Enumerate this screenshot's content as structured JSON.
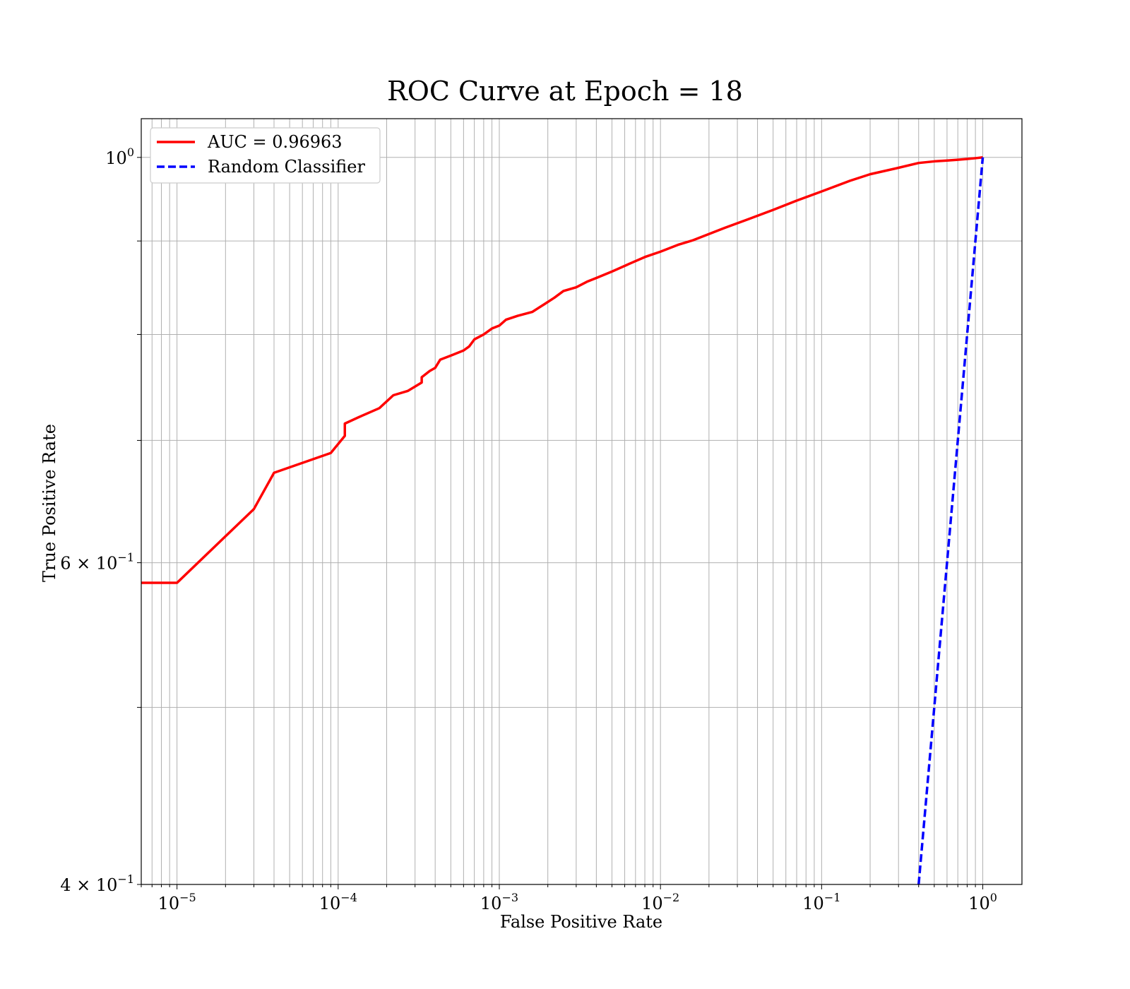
{
  "chart_data": {
    "type": "line",
    "title": "ROC Curve at Epoch = 18",
    "xlabel": "False Positive Rate",
    "ylabel": "True Positive Rate",
    "xscale": "log",
    "yscale": "log",
    "xlim": [
      6e-06,
      1.75
    ],
    "ylim": [
      0.4,
      1.05
    ],
    "grid": true,
    "legend_position": "upper left",
    "x_tick_labels": [
      {
        "value": 1e-05,
        "base": "10",
        "exp": "−5"
      },
      {
        "value": 0.0001,
        "base": "10",
        "exp": "−4"
      },
      {
        "value": 0.001,
        "base": "10",
        "exp": "−3"
      },
      {
        "value": 0.01,
        "base": "10",
        "exp": "−2"
      },
      {
        "value": 0.1,
        "base": "10",
        "exp": "−1"
      },
      {
        "value": 1,
        "base": "10",
        "exp": "0"
      }
    ],
    "y_tick_labels": [
      {
        "value": 1.0,
        "base": "10",
        "exp": "0"
      },
      {
        "value": 0.6,
        "base": "6 × 10",
        "exp": "−1"
      },
      {
        "value": 0.4,
        "base": "4 × 10",
        "exp": "−1"
      }
    ],
    "y_minor_ticks": [
      0.5,
      0.7,
      0.8,
      0.9
    ],
    "series": [
      {
        "name": "AUC = 0.96963",
        "color": "#ff0000",
        "style": "solid",
        "x": [
          6e-06,
          1e-05,
          3e-05,
          4e-05,
          9e-05,
          0.00011,
          0.00011,
          0.00014,
          0.00018,
          0.00022,
          0.00027,
          0.00033,
          0.00033,
          0.00037,
          0.0004,
          0.00043,
          0.0005,
          0.0006,
          0.00065,
          0.0007,
          0.0008,
          0.0009,
          0.001,
          0.0011,
          0.0013,
          0.0016,
          0.0019,
          0.0022,
          0.0025,
          0.003,
          0.0035,
          0.004,
          0.005,
          0.0065,
          0.008,
          0.01,
          0.013,
          0.016,
          0.02,
          0.025,
          0.035,
          0.05,
          0.07,
          0.1,
          0.15,
          0.2,
          0.3,
          0.4,
          0.5,
          0.6,
          0.7,
          0.8,
          0.9,
          1.0
        ],
        "y": [
          0.585,
          0.585,
          0.642,
          0.672,
          0.689,
          0.704,
          0.715,
          0.722,
          0.729,
          0.741,
          0.745,
          0.753,
          0.758,
          0.764,
          0.767,
          0.775,
          0.779,
          0.784,
          0.788,
          0.795,
          0.8,
          0.806,
          0.809,
          0.815,
          0.819,
          0.823,
          0.831,
          0.838,
          0.845,
          0.849,
          0.855,
          0.859,
          0.866,
          0.875,
          0.882,
          0.888,
          0.896,
          0.901,
          0.908,
          0.915,
          0.925,
          0.936,
          0.947,
          0.958,
          0.971,
          0.979,
          0.987,
          0.993,
          0.995,
          0.996,
          0.997,
          0.998,
          0.999,
          1.0
        ]
      },
      {
        "name": "Random Classifier",
        "color": "#0000ff",
        "style": "dashed",
        "x": [
          0.4,
          0.45,
          0.5,
          0.6,
          0.7,
          0.8,
          0.9,
          1.0
        ],
        "y": [
          0.4,
          0.45,
          0.5,
          0.6,
          0.7,
          0.8,
          0.9,
          1.0
        ]
      }
    ]
  }
}
